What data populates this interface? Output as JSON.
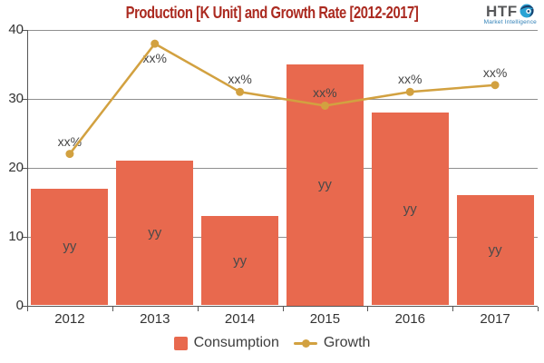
{
  "title": "Production [K Unit] and Growth Rate [2012-2017]",
  "logo": {
    "text": "HTF",
    "subtext": "Market Intelligence"
  },
  "colors": {
    "title": "#ab2a20",
    "bar": "#e8694e",
    "line": "#d2a140",
    "gridline": "#8f8f8f",
    "axis": "#555555",
    "axis_label": "#333333",
    "in_bar_label": "#4a4a4a",
    "logo_text": "#57585a",
    "logo_sub": "#2e7fb6"
  },
  "legend": {
    "items": [
      {
        "label": "Consumption",
        "marker": "square"
      },
      {
        "label": "Growth",
        "marker": "line-dot"
      }
    ],
    "position": "bottom-center"
  },
  "chart_data": {
    "type": "combo-bar-line",
    "title": "Production [K Unit] and Growth Rate [2012-2017]",
    "categories": [
      "2012",
      "2013",
      "2014",
      "2015",
      "2016",
      "2017"
    ],
    "series": [
      {
        "name": "Consumption",
        "type": "bar",
        "values": [
          17,
          21,
          13,
          35,
          28,
          16
        ],
        "color": "#e8694e",
        "point_label": "yy",
        "label_position": "inside-center"
      },
      {
        "name": "Growth",
        "type": "line",
        "values": [
          22,
          38,
          31,
          29,
          31,
          32
        ],
        "color": "#d2a140",
        "point_label": "xx%",
        "label_position": "above-point (below for peak)"
      }
    ],
    "xlabel": "",
    "ylabel": "",
    "ylim": [
      0,
      40
    ],
    "yticks": [
      0,
      10,
      20,
      30,
      40
    ],
    "grid": "horizontal",
    "legend_position": "bottom"
  }
}
